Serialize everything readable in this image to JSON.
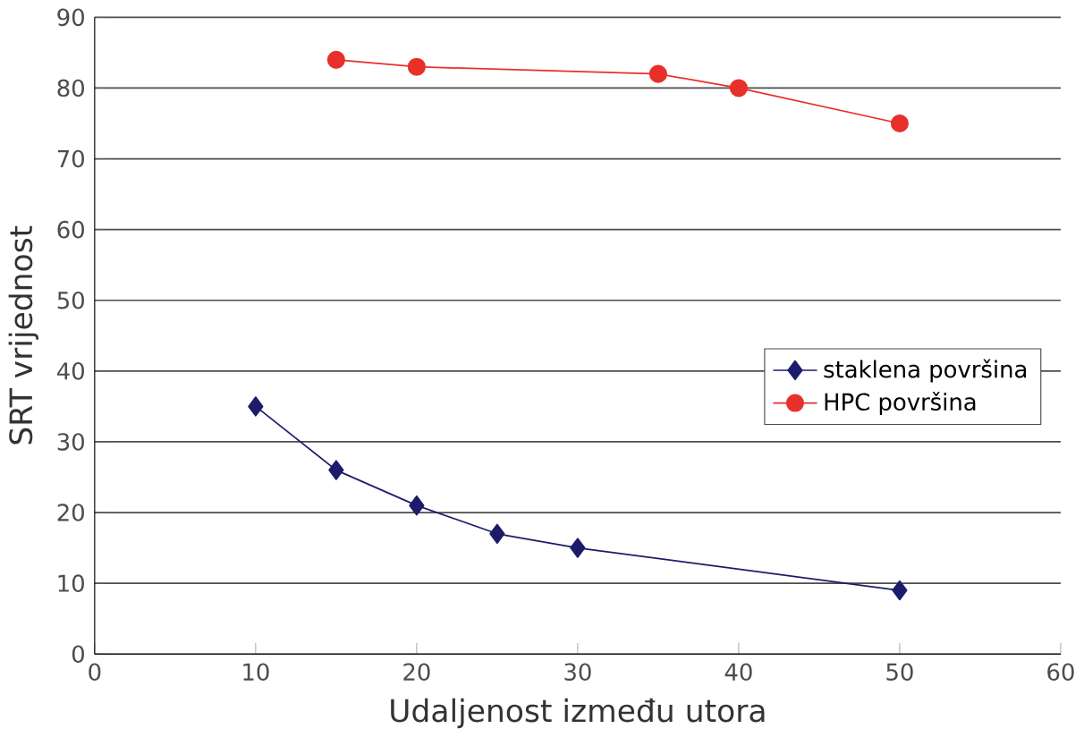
{
  "chart_data": {
    "type": "line",
    "xlabel": "Udaljenost između utora",
    "ylabel": "SRT vrijednost",
    "xlim": [
      0,
      60
    ],
    "xticks": [
      0,
      10,
      20,
      30,
      40,
      50,
      60
    ],
    "ylim": [
      0,
      90
    ],
    "yticks": [
      0,
      10,
      20,
      30,
      40,
      50,
      60,
      70,
      80,
      90
    ],
    "grid": "y",
    "legend": "right",
    "series": [
      {
        "name": "staklena površina",
        "color": "#1c1c6b",
        "marker": "diamond",
        "x": [
          10,
          15,
          20,
          25,
          30,
          50
        ],
        "values": [
          35,
          26,
          21,
          17,
          15,
          9
        ]
      },
      {
        "name": "HPC površina",
        "color": "#e8302a",
        "marker": "circle",
        "x": [
          15,
          20,
          35,
          40,
          50
        ],
        "values": [
          84,
          83,
          82,
          80,
          75
        ]
      }
    ]
  }
}
